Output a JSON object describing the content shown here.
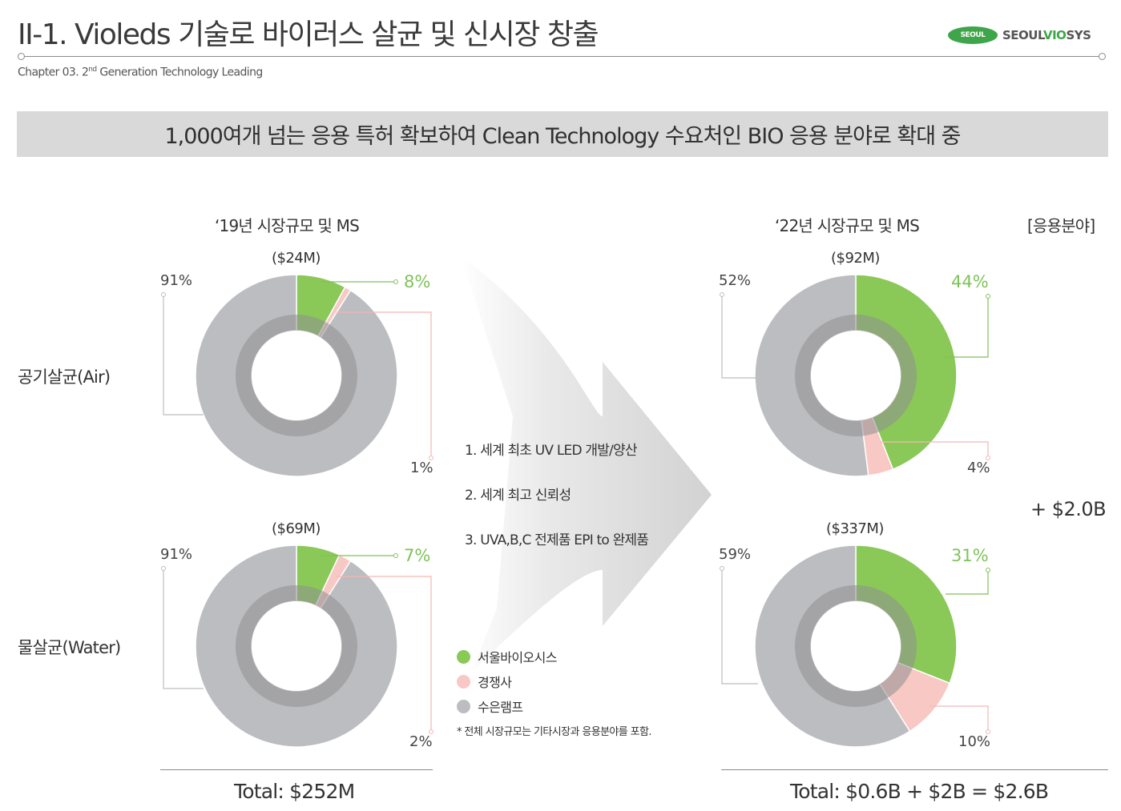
{
  "header": {
    "title": "II-1. Violeds 기술로 바이러스 살균 및 신시장 창출",
    "chapter_prefix": "Chapter 03. 2",
    "chapter_sup": "nd",
    "chapter_suffix": " Generation Technology Leading",
    "logo_oval": "SEOUL",
    "logo_text_a": "SEOUL",
    "logo_text_b": "VIO",
    "logo_text_c": "SYS"
  },
  "banner": "1,000여개 넘는 응용 특허 확보하여 Clean Technology 수요처인 BIO 응용 분야로 확대 중",
  "left_title": "‘19년 시장규모 및 MS",
  "right_title": "‘22년 시장규모 및 MS",
  "right_tag": "[응용분야]",
  "categories": {
    "air": "공기살균(Air)",
    "water": "물살균(Water)"
  },
  "features": [
    "1. 세계 최초 UV LED 개발/양산",
    "2. 세계 최고 신뢰성",
    "3. UVA,B,C 전제품 EPI to 완제품"
  ],
  "legend": [
    {
      "label": "서울바이오시스",
      "color": "#8ac858"
    },
    {
      "label": "경쟁사",
      "color": "#f8c8c4"
    },
    {
      "label": "수은램프",
      "color": "#bcbdc0"
    }
  ],
  "note": "* 전체 시장규모는 기타시장과 응용분야를 포함.",
  "plus_label": "+ $2.0B",
  "total_left": "Total: $252M",
  "total_right": "Total: $0.6B + $2B = $2.6B",
  "colors": {
    "seoul": "#8ac858",
    "competitor": "#f8c8c4",
    "mercury": "#bcbdc0",
    "inner_ring": "#8f9091",
    "accent_text": "#7fc25a",
    "leader": "#bdbdbd",
    "leader_pink": "#f3b7b2"
  },
  "chart_data": [
    {
      "type": "pie",
      "title": "‘19년 시장규모 및 MS",
      "category": "공기살균(Air)",
      "market_size": "($24M)",
      "labels": [
        "서울바이오시스",
        "경쟁사",
        "수은램프"
      ],
      "values": [
        8,
        1,
        91
      ],
      "value_labels": [
        "8%",
        "1%",
        "91%"
      ]
    },
    {
      "type": "pie",
      "title": "‘19년 시장규모 및 MS",
      "category": "물살균(Water)",
      "market_size": "($69M)",
      "labels": [
        "서울바이오시스",
        "경쟁사",
        "수은램프"
      ],
      "values": [
        7,
        2,
        91
      ],
      "value_labels": [
        "7%",
        "2%",
        "91%"
      ]
    },
    {
      "type": "pie",
      "title": "‘22년 시장규모 및 MS",
      "category": "공기살균(Air)",
      "market_size": "($92M)",
      "labels": [
        "서울바이오시스",
        "경쟁사",
        "수은램프"
      ],
      "values": [
        44,
        4,
        52
      ],
      "value_labels": [
        "44%",
        "4%",
        "52%"
      ]
    },
    {
      "type": "pie",
      "title": "‘22년 시장규모 및 MS",
      "category": "물살균(Water)",
      "market_size": "($337M)",
      "labels": [
        "서울바이오시스",
        "경쟁사",
        "수은램프"
      ],
      "values": [
        31,
        10,
        59
      ],
      "value_labels": [
        "31%",
        "10%",
        "59%"
      ]
    }
  ]
}
